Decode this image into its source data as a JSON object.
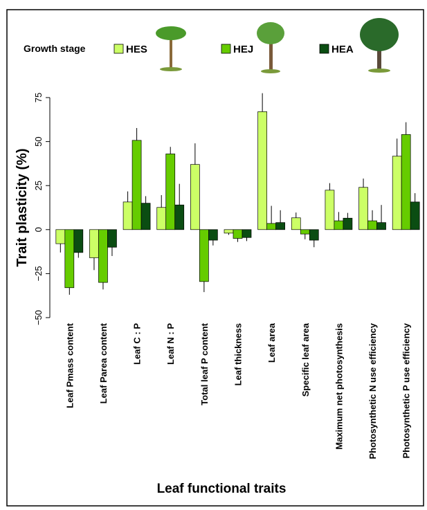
{
  "chart_data": {
    "type": "bar",
    "legend_title": "Growth stage",
    "y_label": "Trait plasticity (%)",
    "x_label": "Leaf functional traits",
    "categories": [
      "Leaf Pmass content",
      "Leaf Parea content",
      "Leaf C : P",
      "Leaf N : P",
      "Total leaf P content",
      "Leaf thickness",
      "Leaf area",
      "Specific leaf area",
      "Maximum net photosynthesis",
      "Photosynthetic N use efficiency",
      "Photosynthetic P use efficiency"
    ],
    "series": [
      {
        "name": "HES",
        "color": "#ccff66",
        "values": [
          -8,
          -16,
          15.7,
          12.6,
          37,
          -2,
          67,
          6.7,
          22.4,
          24,
          41.7
        ],
        "errors": [
          5,
          7,
          6,
          7,
          12,
          1,
          10.5,
          3,
          4,
          5,
          10
        ]
      },
      {
        "name": "HEJ",
        "color": "#66cc00",
        "values": [
          -33,
          -30,
          50.7,
          43,
          -29.5,
          -5,
          3.5,
          -2.5,
          5,
          5,
          54
        ],
        "errors": [
          4,
          4,
          7,
          4,
          6,
          2,
          10,
          3,
          5,
          6,
          7
        ]
      },
      {
        "name": "HEA",
        "color": "#0b4d12",
        "values": [
          -13,
          -10,
          15,
          14,
          -6,
          -4.5,
          4,
          -6,
          6.5,
          4,
          15.7
        ],
        "errors": [
          3,
          5,
          4,
          12,
          3,
          2,
          7,
          4,
          3,
          10,
          5
        ]
      }
    ],
    "ylim": [
      -50,
      75
    ],
    "yticks": [
      {
        "value": -50,
        "label": "−50"
      },
      {
        "value": -25,
        "label": "−25"
      },
      0,
      25,
      50,
      75
    ]
  }
}
